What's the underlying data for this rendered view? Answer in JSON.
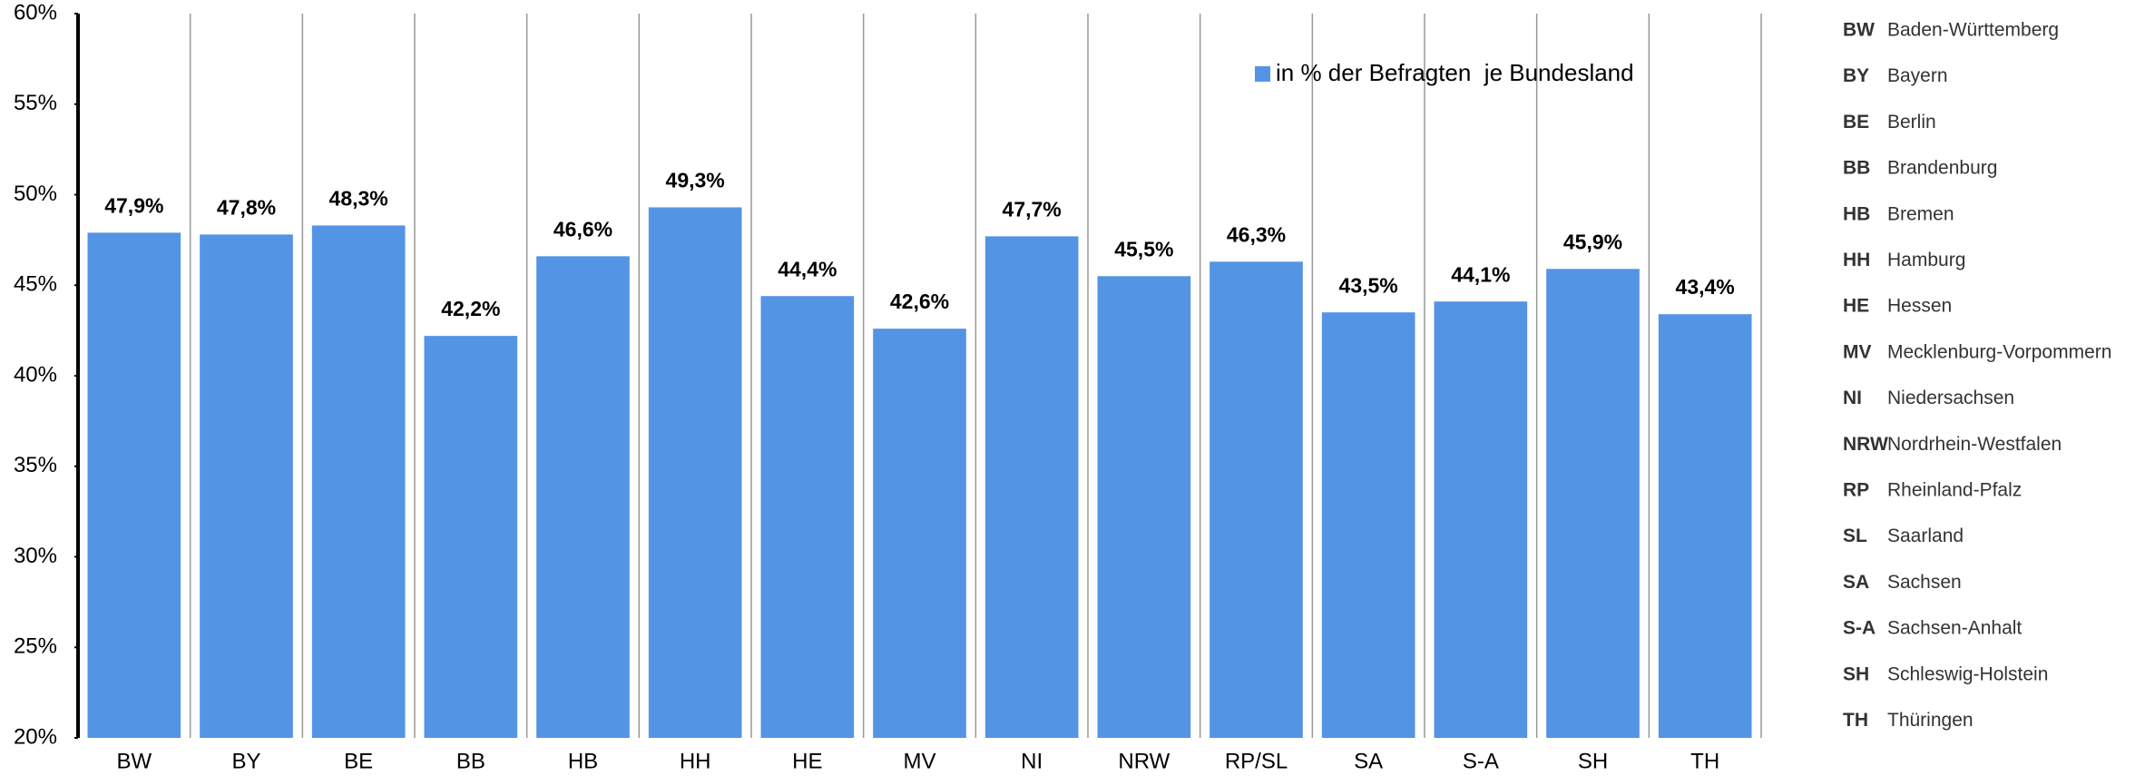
{
  "chart_data": {
    "type": "bar",
    "categories": [
      "BW",
      "BY",
      "BE",
      "BB",
      "HB",
      "HH",
      "HE",
      "MV",
      "NI",
      "NRW",
      "RP/SL",
      "SA",
      "S-A",
      "SH",
      "TH"
    ],
    "series": [
      {
        "name": "in % der Befragten  je Bundesland",
        "color": "#5494e4",
        "values": [
          47.9,
          47.8,
          48.3,
          42.2,
          46.6,
          49.3,
          44.4,
          42.6,
          47.7,
          45.5,
          46.3,
          43.5,
          44.1,
          45.9,
          43.4
        ],
        "value_labels": [
          "47,9%",
          "47,8%",
          "48,3%",
          "42,2%",
          "46,6%",
          "49,3%",
          "44,4%",
          "42,6%",
          "47,7%",
          "45,5%",
          "46,3%",
          "43,5%",
          "44,1%",
          "45,9%",
          "43,4%"
        ]
      }
    ],
    "ylim": [
      20,
      60
    ],
    "yticks": [
      {
        "value": 20,
        "label": "20%"
      },
      {
        "value": 25,
        "label": "25%"
      },
      {
        "value": 30,
        "label": "30%"
      },
      {
        "value": 35,
        "label": "35%"
      },
      {
        "value": 40,
        "label": "40%"
      },
      {
        "value": 45,
        "label": "45%"
      },
      {
        "value": 50,
        "label": "50%"
      },
      {
        "value": 55,
        "label": "55%"
      },
      {
        "value": 60,
        "label": "60%"
      }
    ],
    "key": [
      {
        "abbr": "BW",
        "name": "Baden-Württemberg"
      },
      {
        "abbr": "BY",
        "name": "Bayern"
      },
      {
        "abbr": "BE",
        "name": "Berlin"
      },
      {
        "abbr": "BB",
        "name": "Brandenburg"
      },
      {
        "abbr": "HB",
        "name": "Bremen"
      },
      {
        "abbr": "HH",
        "name": "Hamburg"
      },
      {
        "abbr": "HE",
        "name": "Hessen"
      },
      {
        "abbr": "MV",
        "name": "Mecklenburg-Vorpommern"
      },
      {
        "abbr": "NI",
        "name": "Niedersachsen"
      },
      {
        "abbr": "NRW",
        "name": "Nordrhein-Westfalen"
      },
      {
        "abbr": "RP",
        "name": "Rheinland-Pfalz"
      },
      {
        "abbr": "SL",
        "name": "Saarland"
      },
      {
        "abbr": "SA",
        "name": "Sachsen"
      },
      {
        "abbr": "S-A",
        "name": "Sachsen-Anhalt"
      },
      {
        "abbr": "SH",
        "name": "Schleswig-Holstein"
      },
      {
        "abbr": "TH",
        "name": "Thüringen"
      }
    ]
  }
}
